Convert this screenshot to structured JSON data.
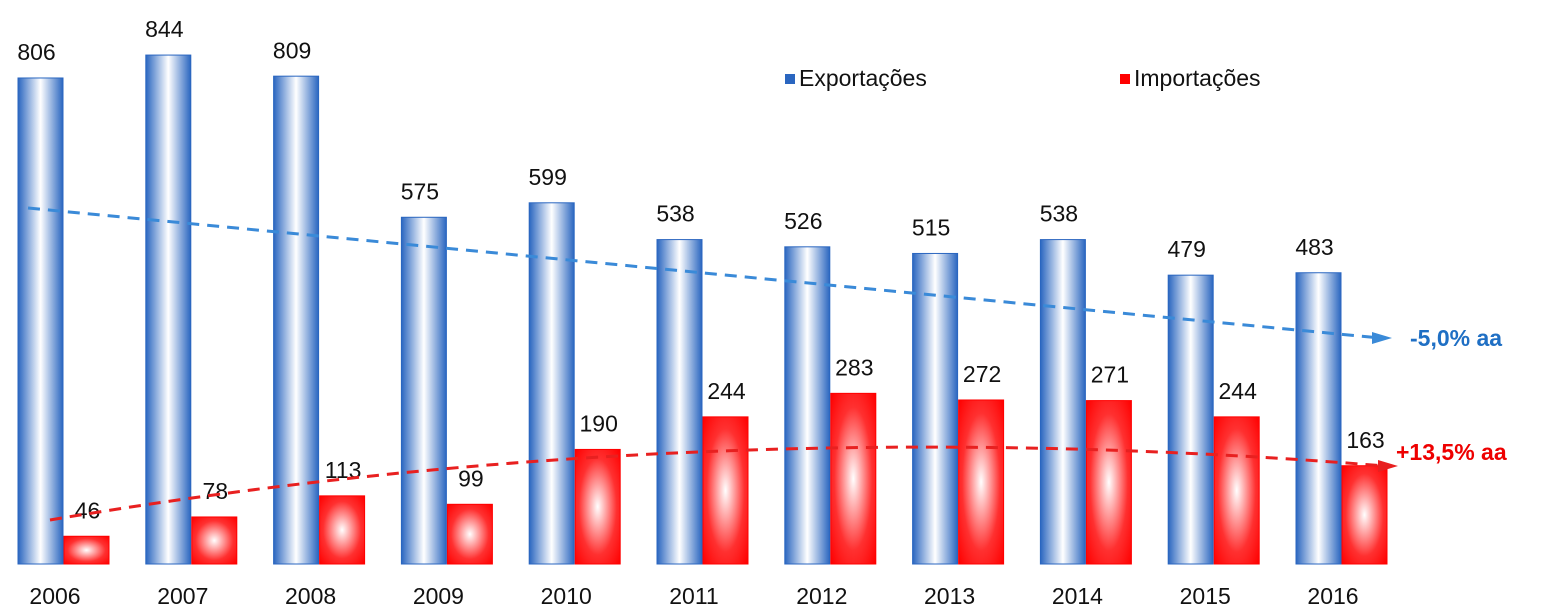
{
  "chart_data": {
    "type": "bar",
    "categories": [
      "2006",
      "2007",
      "2008",
      "2009",
      "2010",
      "2011",
      "2012",
      "2013",
      "2014",
      "2015",
      "2016"
    ],
    "series": [
      {
        "name": "Exportações",
        "color": "#2a66c0",
        "values": [
          806,
          844,
          809,
          575,
          599,
          538,
          526,
          515,
          538,
          479,
          483
        ]
      },
      {
        "name": "Importações",
        "color": "#ff0000",
        "values": [
          46,
          78,
          113,
          99,
          190,
          244,
          283,
          272,
          271,
          244,
          163
        ]
      }
    ],
    "legend": "top",
    "annotations": [
      "-5,0% aa",
      "+13,5% aa"
    ]
  }
}
